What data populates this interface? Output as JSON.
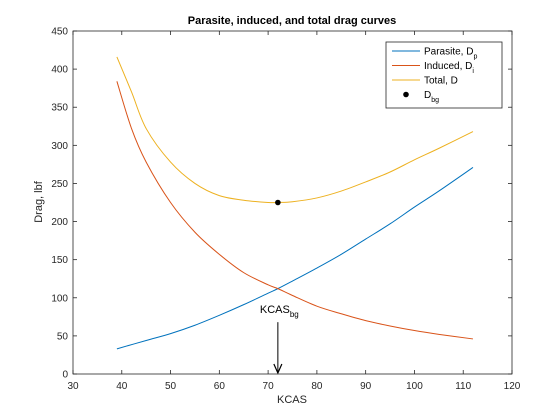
{
  "chart_data": {
    "type": "line",
    "title": "Parasite, induced, and total drag curves",
    "xlabel": "KCAS",
    "ylabel": "Drag, lbf",
    "xlim": [
      30,
      120
    ],
    "ylim": [
      0,
      450
    ],
    "xticks": [
      30,
      40,
      50,
      60,
      70,
      80,
      90,
      100,
      110,
      120
    ],
    "yticks": [
      0,
      50,
      100,
      150,
      200,
      250,
      300,
      350,
      400,
      450
    ],
    "grid": false,
    "legend_position": "top-right",
    "series": [
      {
        "name": "Parasite, D",
        "name_subscript": "p",
        "color": "#0072BD",
        "x": [
          39,
          45,
          50,
          55,
          60,
          65,
          70,
          72,
          75,
          80,
          85,
          90,
          95,
          100,
          105,
          112
        ],
        "y": [
          33,
          44,
          53,
          64,
          77,
          91,
          106,
          112,
          122,
          139,
          157,
          177,
          197,
          219,
          240,
          271
        ]
      },
      {
        "name": "Induced, D",
        "name_subscript": "i",
        "color": "#D95319",
        "x": [
          39,
          42,
          45,
          50,
          55,
          60,
          65,
          70,
          72,
          75,
          80,
          85,
          90,
          95,
          100,
          105,
          112
        ],
        "y": [
          384,
          322,
          278,
          225,
          186,
          157,
          133,
          117,
          112,
          103,
          89,
          79,
          70,
          63,
          57,
          52,
          46
        ]
      },
      {
        "name": "Total, D",
        "name_subscript": "",
        "color": "#EDB120",
        "x": [
          39,
          42,
          45,
          50,
          55,
          60,
          65,
          70,
          72,
          75,
          80,
          85,
          90,
          95,
          100,
          105,
          112
        ],
        "y": [
          416,
          370,
          322,
          278,
          250,
          234,
          228,
          225,
          225,
          226,
          231,
          240,
          252,
          265,
          281,
          296,
          318
        ]
      }
    ],
    "points": [
      {
        "name": "D",
        "name_subscript": "bg",
        "x": 72,
        "y": 225,
        "color": "#000000"
      }
    ],
    "annotations": [
      {
        "text": "KCAS",
        "subscript": "bg",
        "x": 72,
        "arrow_from_y": 68,
        "arrow_to_y": 0
      }
    ]
  }
}
